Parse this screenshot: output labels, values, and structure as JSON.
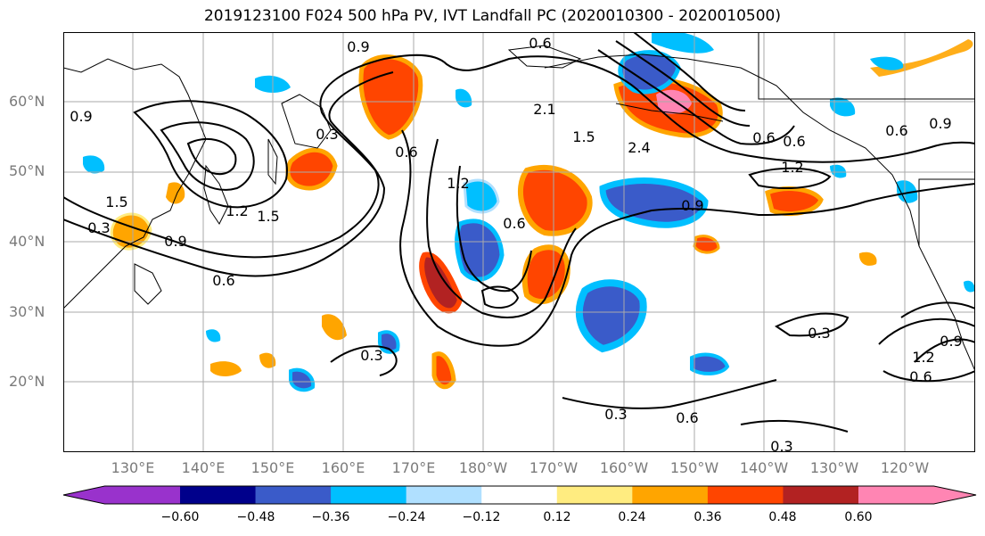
{
  "title": "2019123100 F024 500 hPa PV, IVT Landfall PC (2020010300 - 2020010500)",
  "map": {
    "lat_labels": [
      "60°N",
      "50°N",
      "40°N",
      "30°N",
      "20°N"
    ],
    "lon_labels": [
      "130°E",
      "140°E",
      "150°E",
      "160°E",
      "170°E",
      "180°W",
      "170°W",
      "160°W",
      "150°W",
      "140°W",
      "130°W",
      "120°W"
    ],
    "contour_labels": [
      "0.9",
      "0.6",
      "0.9",
      "0.6",
      "0.3",
      "1.2",
      "1.5",
      "1.5",
      "0.9",
      "0.6",
      "0.3",
      "0.6",
      "1.2",
      "0.6",
      "2.1",
      "1.5",
      "2.4",
      "0.6",
      "1.2",
      "0.9",
      "0.6",
      "0.9",
      "0.3",
      "0.3",
      "0.3",
      "0.6",
      "0.3",
      "1.2",
      "0.9",
      "0.6"
    ]
  },
  "colorbar": {
    "tick_labels": [
      "−0.60",
      "−0.48",
      "−0.36",
      "−0.24",
      "−0.12",
      "0.12",
      "0.24",
      "0.36",
      "0.48",
      "0.60"
    ],
    "colors": [
      "#9932cc",
      "#00008b",
      "#3a5bc9",
      "#00bfff",
      "#b0e0ff",
      "#ffffff",
      "#ffec80",
      "#ffa500",
      "#ff4500",
      "#b22222",
      "#ff85b3"
    ]
  }
}
